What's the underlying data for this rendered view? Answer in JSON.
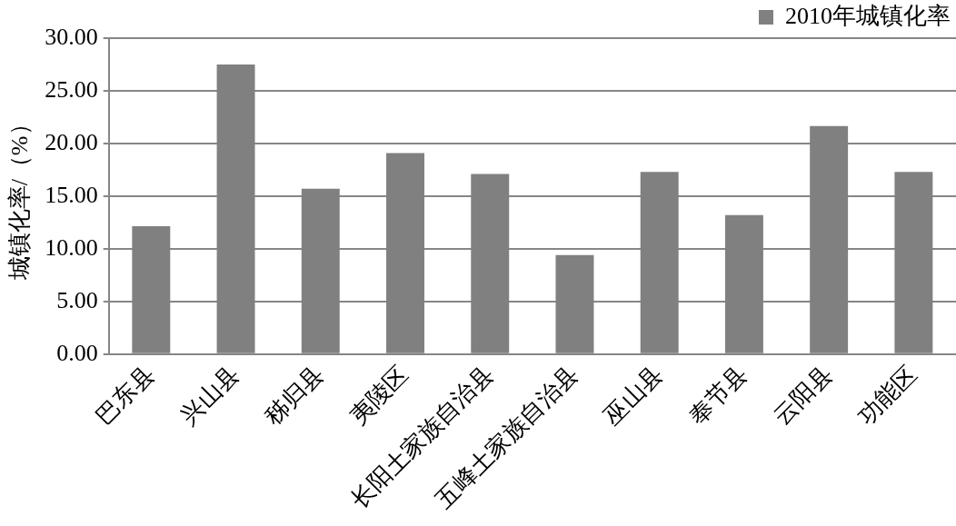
{
  "chart_data": {
    "type": "bar",
    "ylabel": "城镇化率/（%）",
    "categories": [
      "巴东县",
      "兴山县",
      "秭归县",
      "夷陵区",
      "长阳土家族自治县",
      "五峰土家族自治县",
      "巫山县",
      "奉节县",
      "云阳县",
      "功能区"
    ],
    "series": [
      {
        "name": "2010年城镇化率",
        "color": "#808080",
        "values": [
          12.15,
          27.5,
          15.7,
          19.1,
          17.1,
          9.4,
          17.3,
          13.2,
          21.65,
          17.3
        ]
      }
    ],
    "ylim": [
      0,
      30
    ],
    "yticks": [
      {
        "value": 0,
        "label": "0.00"
      },
      {
        "value": 5,
        "label": "5.00"
      },
      {
        "value": 10,
        "label": "10.00"
      },
      {
        "value": 15,
        "label": "15.00"
      },
      {
        "value": 20,
        "label": "20.00"
      },
      {
        "value": 25,
        "label": "25.00"
      },
      {
        "value": 30,
        "label": "30.00"
      }
    ],
    "grid": "y",
    "legend": "top right"
  }
}
